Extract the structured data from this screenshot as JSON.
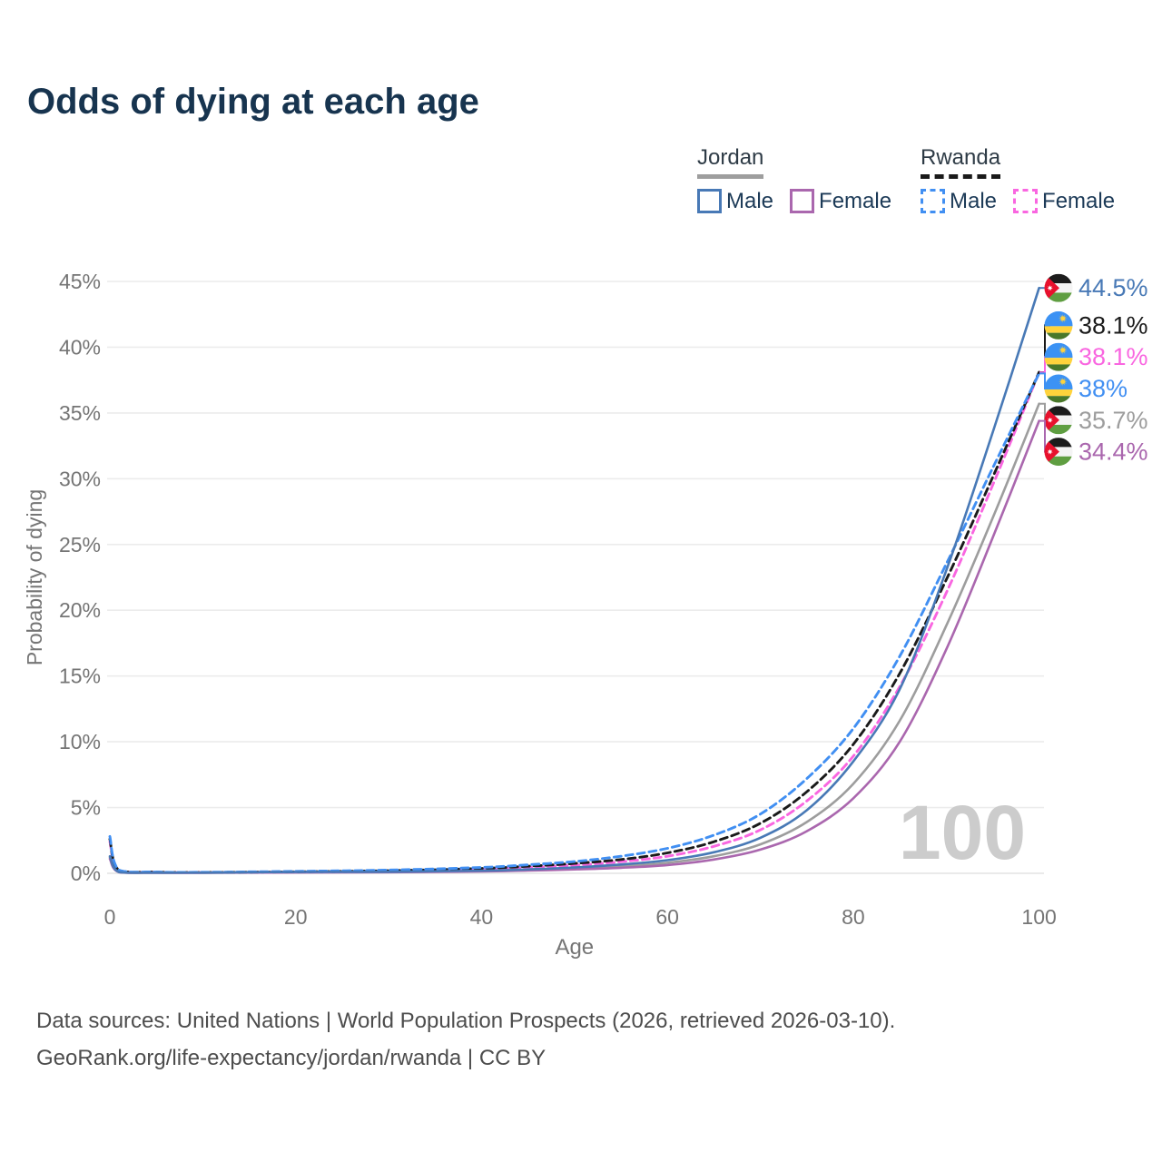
{
  "title": "Odds of dying at each age",
  "legend": {
    "groups": [
      {
        "id": "jordan",
        "label": "Jordan",
        "line_style": "solid",
        "underline_color": "#9e9e9e",
        "items": [
          {
            "label": "Male",
            "color": "#4879b6"
          },
          {
            "label": "Female",
            "color": "#aa67ae"
          }
        ]
      },
      {
        "id": "rwanda",
        "label": "Rwanda",
        "line_style": "dashed",
        "underline_color": "#1a1a1a",
        "items": [
          {
            "label": "Male",
            "color": "#418ff2"
          },
          {
            "label": "Female",
            "color": "#f966e0"
          }
        ]
      }
    ]
  },
  "watermark": {
    "text": "100",
    "color": "#cccccc"
  },
  "footer": {
    "line1": "Data sources: United Nations | World Population Prospects (2026, retrieved 2026-03-10).",
    "line2": "GeoRank.org/life-expectancy/jordan/rwanda | CC BY"
  },
  "chart_data": {
    "type": "line",
    "title": "Odds of dying at each age",
    "xlabel": "Age",
    "ylabel": "Probability of dying",
    "xlim": [
      0,
      100
    ],
    "ylim": [
      0,
      45
    ],
    "x_ticks": [
      "0",
      "20",
      "40",
      "60",
      "80",
      "100"
    ],
    "x_tick_values": [
      0,
      20,
      40,
      60,
      80,
      100
    ],
    "y_ticks": [
      "0%",
      "5%",
      "10%",
      "15%",
      "20%",
      "25%",
      "30%",
      "35%",
      "40%",
      "45%"
    ],
    "y_tick_values": [
      0,
      5,
      10,
      15,
      20,
      25,
      30,
      35,
      40,
      45
    ],
    "grid": true,
    "legend_position": "top-right",
    "ages": [
      0,
      1,
      5,
      10,
      20,
      30,
      40,
      45,
      50,
      55,
      60,
      65,
      70,
      75,
      80,
      85,
      90,
      95,
      100
    ],
    "series": [
      {
        "id": "jordan-total",
        "name": "Jordan Both sexes",
        "country": "Jordan",
        "sex": "both",
        "flag": "jordan",
        "color": "#9d9d9d",
        "dash": "solid",
        "end_label": "35.7%",
        "values": [
          1.2,
          0.09,
          0.045,
          0.045,
          0.08,
          0.1,
          0.17,
          0.26,
          0.37,
          0.53,
          0.8,
          1.3,
          2.2,
          3.9,
          6.8,
          11.6,
          18.8,
          27.0,
          35.7
        ]
      },
      {
        "id": "jordan-female",
        "name": "Jordan Female",
        "country": "Jordan",
        "sex": "female",
        "flag": "jordan",
        "color": "#aa67ae",
        "dash": "solid",
        "end_label": "34.4%",
        "values": [
          1.1,
          0.08,
          0.04,
          0.04,
          0.06,
          0.08,
          0.14,
          0.21,
          0.3,
          0.42,
          0.63,
          1.05,
          1.8,
          3.2,
          5.7,
          10.0,
          17.0,
          25.5,
          34.4
        ]
      },
      {
        "id": "rwanda-female",
        "name": "Rwanda Female",
        "country": "Rwanda",
        "sex": "female",
        "flag": "rwanda",
        "color": "#f966e0",
        "dash": "dashed",
        "end_label": "38.1%",
        "values": [
          2.4,
          0.2,
          0.08,
          0.06,
          0.1,
          0.16,
          0.3,
          0.44,
          0.62,
          0.88,
          1.3,
          2.05,
          3.3,
          5.5,
          8.9,
          14.2,
          21.3,
          29.5,
          38.08
        ]
      },
      {
        "id": "rwanda-total",
        "name": "Rwanda Both sexes",
        "country": "Rwanda",
        "sex": "both",
        "flag": "rwanda",
        "color": "#1a1a1a",
        "dash": "dashed",
        "end_label": "38.1%",
        "values": [
          2.6,
          0.22,
          0.09,
          0.07,
          0.12,
          0.2,
          0.37,
          0.54,
          0.75,
          1.05,
          1.55,
          2.4,
          3.8,
          6.2,
          9.8,
          15.2,
          22.3,
          30.1,
          38.1
        ]
      },
      {
        "id": "rwanda-male",
        "name": "Rwanda Male",
        "country": "Rwanda",
        "sex": "male",
        "flag": "rwanda",
        "color": "#418ff2",
        "dash": "dashed",
        "end_label": "38%",
        "values": [
          2.8,
          0.25,
          0.1,
          0.08,
          0.15,
          0.25,
          0.45,
          0.65,
          0.9,
          1.3,
          1.9,
          2.9,
          4.5,
          7.2,
          11.0,
          16.5,
          23.5,
          30.8,
          38.0
        ]
      },
      {
        "id": "jordan-male",
        "name": "Jordan Male",
        "country": "Jordan",
        "sex": "male",
        "flag": "jordan",
        "color": "#4879b6",
        "dash": "solid",
        "end_label": "44.5%",
        "values": [
          1.3,
          0.1,
          0.05,
          0.05,
          0.1,
          0.12,
          0.2,
          0.3,
          0.45,
          0.67,
          1.0,
          1.6,
          2.7,
          4.8,
          8.5,
          14.0,
          23.0,
          33.5,
          44.5
        ]
      }
    ]
  }
}
